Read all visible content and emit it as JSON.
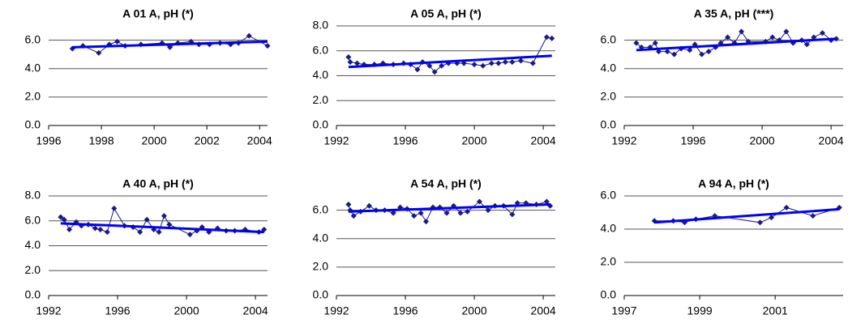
{
  "chart_data": [
    {
      "type": "line",
      "title": "A 01 A, pH  (*)",
      "xlim": [
        1996,
        2004.3
      ],
      "xticks": [
        1996,
        1998,
        2000,
        2002,
        2004
      ],
      "ylim": [
        0,
        7
      ],
      "yticks": [
        {
          "value": 0,
          "label": "0.0"
        },
        {
          "value": 2,
          "label": "2.0"
        },
        {
          "value": 4,
          "label": "4.0"
        },
        {
          "value": 6,
          "label": "6.0"
        }
      ],
      "grid": true,
      "series": [
        {
          "color": "#1a1a80",
          "markers": true,
          "x": [
            1996.9,
            1997.3,
            1997.9,
            1998.3,
            1998.6,
            1998.9,
            1999.5,
            2000.3,
            2000.6,
            2000.9,
            2001.4,
            2001.7,
            2002.1,
            2002.5,
            2002.9,
            2003.2,
            2003.6,
            2004.3
          ],
          "values": [
            5.4,
            5.6,
            5.1,
            5.7,
            5.9,
            5.6,
            5.7,
            5.8,
            5.5,
            5.8,
            5.9,
            5.7,
            5.7,
            5.8,
            5.7,
            5.8,
            6.3,
            5.6
          ]
        },
        {
          "color": "#0000ff",
          "markers": false,
          "x": [
            1996.9,
            2004.3
          ],
          "values": [
            5.5,
            5.9
          ]
        }
      ]
    },
    {
      "type": "line",
      "title": "A 05 A, pH  (*)",
      "xlim": [
        1992,
        2004.7
      ],
      "xticks": [
        1992,
        1996,
        2000,
        2004
      ],
      "ylim": [
        0,
        8
      ],
      "yticks": [
        {
          "value": 0,
          "label": "0.0"
        },
        {
          "value": 2,
          "label": "2.0"
        },
        {
          "value": 4,
          "label": "4.0"
        },
        {
          "value": 6,
          "label": "6.0"
        },
        {
          "value": 8,
          "label": "8.0"
        }
      ],
      "grid": true,
      "series": [
        {
          "color": "#1a1a80",
          "markers": true,
          "x": [
            1992.7,
            1992.8,
            1993.2,
            1993.6,
            1994.2,
            1994.7,
            1995.3,
            1995.9,
            1996.3,
            1996.7,
            1997.0,
            1997.4,
            1997.7,
            1998.1,
            1998.5,
            1999.0,
            1999.4,
            2000.0,
            2000.5,
            2001.0,
            2001.4,
            2001.8,
            2002.2,
            2002.7,
            2003.4,
            2004.2,
            2004.5
          ],
          "values": [
            5.5,
            5.1,
            5.0,
            4.9,
            4.9,
            5.0,
            4.9,
            5.0,
            4.9,
            4.5,
            5.1,
            4.8,
            4.3,
            4.8,
            5.0,
            5.0,
            5.0,
            4.9,
            4.8,
            5.0,
            5.0,
            5.1,
            5.1,
            5.2,
            5.0,
            7.1,
            7.0
          ]
        },
        {
          "color": "#0000ff",
          "markers": false,
          "x": [
            1992.7,
            2004.5
          ],
          "values": [
            4.7,
            5.6
          ]
        }
      ]
    },
    {
      "type": "line",
      "title": "A 35 A, pH  (***)",
      "xlim": [
        1992,
        2004.7
      ],
      "xticks": [
        1992,
        1996,
        2000,
        2004
      ],
      "ylim": [
        0,
        7
      ],
      "yticks": [
        {
          "value": 0,
          "label": "0.0"
        },
        {
          "value": 2,
          "label": "2.0"
        },
        {
          "value": 4,
          "label": "4.0"
        },
        {
          "value": 6,
          "label": "6.0"
        }
      ],
      "grid": true,
      "series": [
        {
          "color": "#1a1a80",
          "markers": true,
          "x": [
            1992.7,
            1993.0,
            1993.5,
            1993.8,
            1994.0,
            1994.5,
            1994.9,
            1995.3,
            1995.8,
            1996.1,
            1996.5,
            1996.9,
            1997.3,
            1997.6,
            1998.0,
            1998.4,
            1998.8,
            1999.2,
            2000.2,
            2000.6,
            2001.0,
            2001.4,
            2001.8,
            2002.3,
            2002.6,
            2003.0,
            2003.5,
            2004.0,
            2004.3
          ],
          "values": [
            5.8,
            5.5,
            5.5,
            5.8,
            5.2,
            5.2,
            5.0,
            5.4,
            5.3,
            5.7,
            5.0,
            5.2,
            5.5,
            5.8,
            6.2,
            5.8,
            6.6,
            5.9,
            5.9,
            6.2,
            6.0,
            6.6,
            5.8,
            6.0,
            5.7,
            6.2,
            6.5,
            6.0,
            6.1
          ]
        },
        {
          "color": "#0000ff",
          "markers": false,
          "x": [
            1992.7,
            2004.3
          ],
          "values": [
            5.3,
            6.1
          ]
        }
      ]
    },
    {
      "type": "line",
      "title": "A 40 A, pH  (*)",
      "xlim": [
        1992,
        2004.7
      ],
      "xticks": [
        1992,
        1996,
        2000,
        2004
      ],
      "ylim": [
        0,
        8
      ],
      "yticks": [
        {
          "value": 0,
          "label": "0.0"
        },
        {
          "value": 2,
          "label": "2.0"
        },
        {
          "value": 4,
          "label": "4.0"
        },
        {
          "value": 6,
          "label": "6.0"
        },
        {
          "value": 8,
          "label": "8.0"
        }
      ],
      "grid": true,
      "series": [
        {
          "color": "#1a1a80",
          "markers": true,
          "x": [
            1992.7,
            1992.9,
            1993.2,
            1993.6,
            1993.9,
            1994.3,
            1994.7,
            1995.0,
            1995.4,
            1995.8,
            1996.4,
            1996.9,
            1997.3,
            1997.7,
            1998.1,
            1998.4,
            1998.7,
            1999.0,
            2000.2,
            2000.6,
            2000.9,
            2001.3,
            2001.8,
            2002.3,
            2002.8,
            2003.4,
            2004.2,
            2004.5
          ],
          "values": [
            6.3,
            6.1,
            5.3,
            5.9,
            5.6,
            5.7,
            5.4,
            5.3,
            5.1,
            7.0,
            5.6,
            5.5,
            5.1,
            6.1,
            5.3,
            5.1,
            6.4,
            5.7,
            4.9,
            5.2,
            5.5,
            5.1,
            5.4,
            5.2,
            5.2,
            5.3,
            5.1,
            5.3
          ]
        },
        {
          "color": "#0000ff",
          "markers": false,
          "x": [
            1992.7,
            2004.5
          ],
          "values": [
            5.8,
            5.1
          ]
        }
      ]
    },
    {
      "type": "line",
      "title": "A 54 A, pH  (*)",
      "xlim": [
        1992,
        2004.7
      ],
      "xticks": [
        1992,
        1996,
        2000,
        2004
      ],
      "ylim": [
        0,
        7
      ],
      "yticks": [
        {
          "value": 0,
          "label": "0.0"
        },
        {
          "value": 2,
          "label": "2.0"
        },
        {
          "value": 4,
          "label": "4.0"
        },
        {
          "value": 6,
          "label": "6.0"
        }
      ],
      "grid": true,
      "series": [
        {
          "color": "#1a1a80",
          "markers": true,
          "x": [
            1992.7,
            1992.8,
            1993.0,
            1993.4,
            1993.9,
            1994.3,
            1994.8,
            1995.3,
            1995.7,
            1996.1,
            1996.5,
            1996.9,
            1997.2,
            1997.6,
            1998.0,
            1998.4,
            1998.8,
            1999.2,
            1999.6,
            2000.3,
            2000.8,
            2001.2,
            2001.7,
            2002.2,
            2002.5,
            2003.0,
            2003.6,
            2004.2,
            2004.4
          ],
          "values": [
            6.4,
            6.0,
            5.6,
            5.9,
            6.3,
            6.0,
            6.0,
            5.8,
            6.2,
            6.1,
            5.6,
            5.8,
            5.2,
            6.2,
            6.2,
            5.8,
            6.3,
            5.8,
            5.9,
            6.6,
            6.0,
            6.3,
            6.3,
            5.7,
            6.5,
            6.5,
            6.4,
            6.6,
            6.3
          ]
        },
        {
          "color": "#0000ff",
          "markers": false,
          "x": [
            1992.7,
            2004.4
          ],
          "values": [
            5.9,
            6.4
          ]
        }
      ]
    },
    {
      "type": "line",
      "title": "A 94 A, pH  (*)",
      "xlim": [
        1997,
        2002.8
      ],
      "xticks": [
        1997,
        1999,
        2001
      ],
      "ylim": [
        0,
        6
      ],
      "yticks": [
        {
          "value": 0,
          "label": "0.0"
        },
        {
          "value": 2,
          "label": "2.0"
        },
        {
          "value": 4,
          "label": "4.0"
        },
        {
          "value": 6,
          "label": "6.0"
        }
      ],
      "grid": true,
      "series": [
        {
          "color": "#1a1a80",
          "markers": true,
          "x": [
            1997.8,
            1998.3,
            1998.6,
            1998.9,
            1999.4,
            2000.6,
            2000.9,
            2001.3,
            2002.0,
            2002.7
          ],
          "values": [
            4.5,
            4.5,
            4.4,
            4.6,
            4.8,
            4.4,
            4.7,
            5.3,
            4.8,
            5.3
          ]
        },
        {
          "color": "#0000ff",
          "markers": false,
          "x": [
            1997.8,
            2002.7
          ],
          "values": [
            4.4,
            5.2
          ]
        }
      ]
    }
  ]
}
